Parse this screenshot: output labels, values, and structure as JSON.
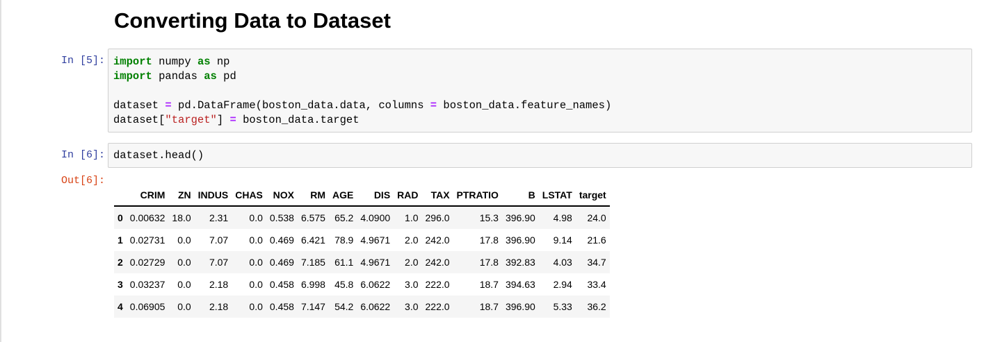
{
  "heading": "Converting Data to Dataset",
  "cells": [
    {
      "prompt": "In [5]:",
      "lines": [
        [
          "import",
          " numpy ",
          "as",
          " np"
        ],
        [
          "import",
          " pandas ",
          "as",
          " pd"
        ],
        [],
        [
          "dataset ",
          "=",
          " pd.DataFrame(boston_data.data, columns ",
          "=",
          " boston_data.feature_names)"
        ],
        [
          "dataset[",
          "\"target\"",
          "] ",
          "=",
          " boston_data.target"
        ]
      ]
    },
    {
      "prompt": "In [6]:",
      "code": "dataset.head()"
    }
  ],
  "output": {
    "prompt": "Out[6]:",
    "columns": [
      "CRIM",
      "ZN",
      "INDUS",
      "CHAS",
      "NOX",
      "RM",
      "AGE",
      "DIS",
      "RAD",
      "TAX",
      "PTRATIO",
      "B",
      "LSTAT",
      "target"
    ],
    "rows": [
      {
        "index": "0",
        "values": [
          "0.00632",
          "18.0",
          "2.31",
          "0.0",
          "0.538",
          "6.575",
          "65.2",
          "4.0900",
          "1.0",
          "296.0",
          "15.3",
          "396.90",
          "4.98",
          "24.0"
        ]
      },
      {
        "index": "1",
        "values": [
          "0.02731",
          "0.0",
          "7.07",
          "0.0",
          "0.469",
          "6.421",
          "78.9",
          "4.9671",
          "2.0",
          "242.0",
          "17.8",
          "396.90",
          "9.14",
          "21.6"
        ]
      },
      {
        "index": "2",
        "values": [
          "0.02729",
          "0.0",
          "7.07",
          "0.0",
          "0.469",
          "7.185",
          "61.1",
          "4.9671",
          "2.0",
          "242.0",
          "17.8",
          "392.83",
          "4.03",
          "34.7"
        ]
      },
      {
        "index": "3",
        "values": [
          "0.03237",
          "0.0",
          "2.18",
          "0.0",
          "0.458",
          "6.998",
          "45.8",
          "6.0622",
          "3.0",
          "222.0",
          "18.7",
          "394.63",
          "2.94",
          "33.4"
        ]
      },
      {
        "index": "4",
        "values": [
          "0.06905",
          "0.0",
          "2.18",
          "0.0",
          "0.458",
          "7.147",
          "54.2",
          "6.0622",
          "3.0",
          "222.0",
          "18.7",
          "396.90",
          "5.33",
          "36.2"
        ]
      }
    ]
  }
}
